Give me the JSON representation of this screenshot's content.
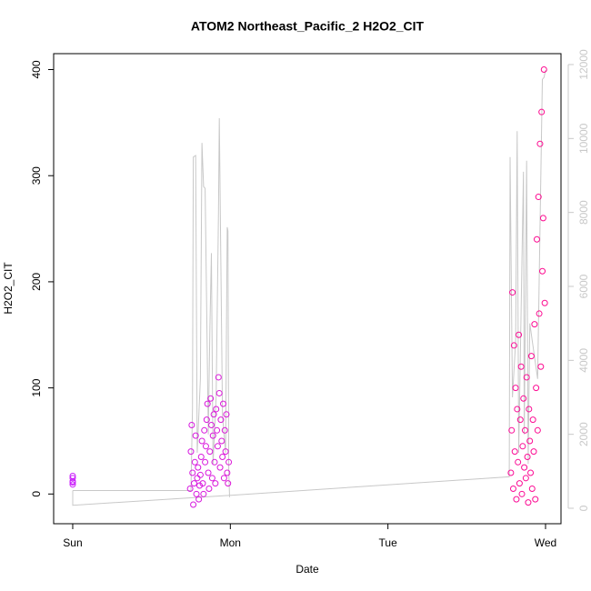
{
  "chart_data": {
    "type": "scatter",
    "title": "ATOM2 Northeast_Pacific_2 H2O2_CIT",
    "xlabel": "Date",
    "ylabel": "H2O2_CIT",
    "xlim": [
      -0.121,
      3.098
    ],
    "xticks": [
      {
        "value": 0,
        "label": "Sun"
      },
      {
        "value": 1,
        "label": "Mon"
      },
      {
        "value": 2,
        "label": "Tue"
      },
      {
        "value": 3,
        "label": "Wed"
      }
    ],
    "ylim": [
      -28,
      415
    ],
    "yticks": [
      0,
      100,
      200,
      300,
      400
    ],
    "y2lim": [
      -418,
      12295
    ],
    "y2ticks": [
      0,
      2000,
      4000,
      6000,
      8000,
      10000,
      12000
    ],
    "y2_color": "#c8c8c8",
    "point_colors": [
      "#c81eff",
      "#ff0a8c"
    ],
    "points": {
      "x": [
        0,
        0,
        0,
        0,
        0,
        0.745,
        0.75,
        0.755,
        0.76,
        0.765,
        0.77,
        0.775,
        0.78,
        0.785,
        0.79,
        0.795,
        0.8,
        0.805,
        0.81,
        0.815,
        0.82,
        0.825,
        0.83,
        0.835,
        0.84,
        0.845,
        0.85,
        0.855,
        0.86,
        0.865,
        0.87,
        0.875,
        0.88,
        0.885,
        0.89,
        0.895,
        0.9,
        0.905,
        0.91,
        0.915,
        0.92,
        0.925,
        0.93,
        0.935,
        0.94,
        0.945,
        0.95,
        0.955,
        0.96,
        0.965,
        0.97,
        0.975,
        0.98,
        0.985,
        0.99,
        2.78,
        2.785,
        2.79,
        2.795,
        2.8,
        2.805,
        2.81,
        2.815,
        2.82,
        2.825,
        2.83,
        2.835,
        2.84,
        2.845,
        2.85,
        2.855,
        2.86,
        2.865,
        2.87,
        2.875,
        2.88,
        2.885,
        2.89,
        2.895,
        2.9,
        2.905,
        2.91,
        2.915,
        2.92,
        2.925,
        2.93,
        2.935,
        2.94,
        2.945,
        2.95,
        2.955,
        2.96,
        2.965,
        2.97,
        2.975,
        2.98,
        2.985,
        2.99,
        2.995
      ],
      "values": [
        9,
        12,
        15,
        17,
        11,
        5,
        40,
        65,
        20,
        -10,
        10,
        30,
        55,
        0,
        15,
        25,
        -5,
        8,
        18,
        35,
        50,
        10,
        0,
        60,
        30,
        45,
        70,
        85,
        20,
        5,
        40,
        90,
        65,
        15,
        55,
        75,
        30,
        10,
        80,
        60,
        45,
        110,
        95,
        25,
        70,
        50,
        35,
        85,
        15,
        60,
        40,
        75,
        20,
        10,
        30,
        20,
        60,
        190,
        5,
        140,
        40,
        100,
        -5,
        80,
        30,
        150,
        10,
        70,
        120,
        0,
        45,
        90,
        25,
        60,
        15,
        110,
        35,
        -8,
        80,
        50,
        20,
        130,
        5,
        70,
        40,
        160,
        -5,
        100,
        240,
        60,
        280,
        170,
        330,
        120,
        360,
        210,
        260,
        400,
        180
      ]
    },
    "line": {
      "axis": "y2",
      "color": "#c8c8c8",
      "x": [
        0,
        0.75,
        0.76,
        0.765,
        0.78,
        0.79,
        0.81,
        0.82,
        0.83,
        0.84,
        0.86,
        0.87,
        0.88,
        0.89,
        0.91,
        0.925,
        0.93,
        0.95,
        0.97,
        0.98,
        0.985,
        0.99,
        0.995,
        null,
        0,
        0,
        1.0,
        2.77,
        2.775,
        2.79,
        2.81,
        2.82,
        2.83,
        2.86,
        2.865,
        2.88,
        2.89,
        2.9,
        2.95,
        2.98,
        2.99,
        3.0
      ],
      "values": [
        480,
        480,
        2700,
        9500,
        9540,
        1500,
        3500,
        9880,
        8700,
        8650,
        2000,
        4800,
        6900,
        1200,
        3000,
        8000,
        10550,
        2500,
        1500,
        7600,
        7500,
        1000,
        300,
        null,
        480,
        80,
        350,
        850,
        9500,
        3000,
        4500,
        10200,
        1500,
        9100,
        2000,
        9400,
        1200,
        5000,
        3500,
        11600,
        11650,
        11850
      ]
    }
  }
}
